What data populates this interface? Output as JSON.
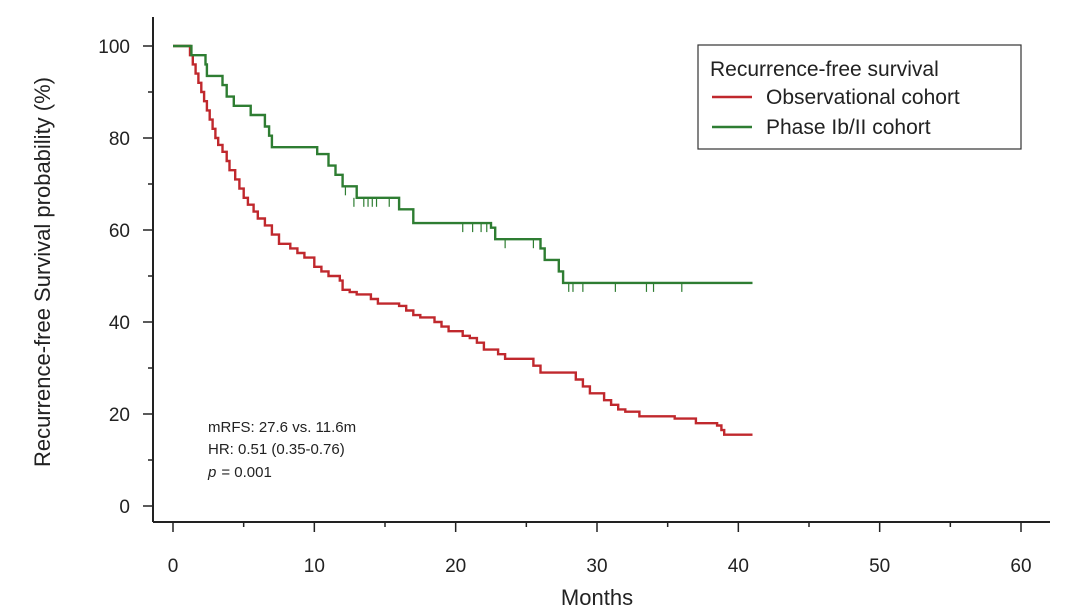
{
  "chart_data": {
    "type": "line",
    "subtype": "kaplan-meier",
    "xlabel": "Months",
    "ylabel": "Recurrence-free Survival probability (%)",
    "xlim": [
      0,
      60
    ],
    "ylim": [
      0,
      100
    ],
    "xticks": [
      0,
      10,
      20,
      30,
      40,
      50,
      60
    ],
    "yticks": [
      0,
      20,
      40,
      60,
      80,
      100
    ],
    "grid": false,
    "legend": {
      "title": "Recurrence-free survival",
      "position": "top-right"
    },
    "series": [
      {
        "name": "Observational cohort",
        "color": "#c0282d",
        "steps": [
          [
            0,
            100
          ],
          [
            1,
            100
          ],
          [
            1.2,
            98
          ],
          [
            1.4,
            96
          ],
          [
            1.6,
            94
          ],
          [
            1.8,
            92
          ],
          [
            2.0,
            90
          ],
          [
            2.2,
            88
          ],
          [
            2.4,
            86
          ],
          [
            2.6,
            84
          ],
          [
            2.8,
            82
          ],
          [
            3.0,
            80
          ],
          [
            3.2,
            78.5
          ],
          [
            3.5,
            77
          ],
          [
            3.8,
            75
          ],
          [
            4.0,
            73
          ],
          [
            4.4,
            71
          ],
          [
            4.7,
            69
          ],
          [
            5.0,
            67
          ],
          [
            5.3,
            65.5
          ],
          [
            5.7,
            64
          ],
          [
            6.0,
            62.5
          ],
          [
            6.5,
            61
          ],
          [
            7.0,
            59
          ],
          [
            7.5,
            57
          ],
          [
            8.3,
            56
          ],
          [
            8.8,
            55
          ],
          [
            9.3,
            54
          ],
          [
            10.0,
            52
          ],
          [
            10.5,
            51
          ],
          [
            11.0,
            50
          ],
          [
            11.8,
            49
          ],
          [
            12.0,
            47
          ],
          [
            12.5,
            46.5
          ],
          [
            13.0,
            46
          ],
          [
            14.0,
            45
          ],
          [
            14.5,
            44
          ],
          [
            16.0,
            43.5
          ],
          [
            16.5,
            42.5
          ],
          [
            17.0,
            41.5
          ],
          [
            17.5,
            41
          ],
          [
            18.5,
            40
          ],
          [
            19.0,
            39
          ],
          [
            19.5,
            38
          ],
          [
            20.5,
            37
          ],
          [
            21.0,
            36.5
          ],
          [
            21.5,
            35.5
          ],
          [
            22.0,
            34
          ],
          [
            23.0,
            33
          ],
          [
            23.5,
            32
          ],
          [
            25.5,
            30.5
          ],
          [
            26.0,
            29
          ],
          [
            28.5,
            27.5
          ],
          [
            29.0,
            26
          ],
          [
            29.5,
            24.5
          ],
          [
            30.5,
            23
          ],
          [
            31.0,
            22
          ],
          [
            31.5,
            21
          ],
          [
            32.0,
            20.5
          ],
          [
            33.0,
            19.5
          ],
          [
            35.5,
            19
          ],
          [
            37.0,
            18
          ],
          [
            38.5,
            17.5
          ],
          [
            38.8,
            16.5
          ],
          [
            39.0,
            15.5
          ],
          [
            41.0,
            15.5
          ]
        ],
        "censor": []
      },
      {
        "name": "Phase Ib/II cohort",
        "color": "#2e7d32",
        "steps": [
          [
            0,
            100
          ],
          [
            1.2,
            100
          ],
          [
            1.3,
            98
          ],
          [
            2.3,
            96
          ],
          [
            2.4,
            93.5
          ],
          [
            3.5,
            91.5
          ],
          [
            3.8,
            89
          ],
          [
            4.3,
            87
          ],
          [
            5.5,
            85
          ],
          [
            6.5,
            82.5
          ],
          [
            6.8,
            80.5
          ],
          [
            7.0,
            78
          ],
          [
            10.2,
            76.5
          ],
          [
            11.0,
            74
          ],
          [
            11.5,
            72
          ],
          [
            12.0,
            69.5
          ],
          [
            13.0,
            67
          ],
          [
            16.0,
            64.5
          ],
          [
            17.0,
            61.5
          ],
          [
            22.5,
            60.5
          ],
          [
            22.8,
            58
          ],
          [
            26.0,
            56
          ],
          [
            26.3,
            53.5
          ],
          [
            27.3,
            51
          ],
          [
            27.6,
            48.5
          ],
          [
            41.0,
            48.5
          ]
        ],
        "censor": [
          [
            12.2,
            69.5
          ],
          [
            12.8,
            67
          ],
          [
            13.5,
            67
          ],
          [
            13.8,
            67
          ],
          [
            14.1,
            67
          ],
          [
            14.4,
            67
          ],
          [
            15.3,
            67
          ],
          [
            20.5,
            61.5
          ],
          [
            21.2,
            61.5
          ],
          [
            21.8,
            61.5
          ],
          [
            22.2,
            61.5
          ],
          [
            23.5,
            58
          ],
          [
            25.5,
            58
          ],
          [
            28.0,
            48.5
          ],
          [
            28.3,
            48.5
          ],
          [
            29.0,
            48.5
          ],
          [
            31.3,
            48.5
          ],
          [
            33.5,
            48.5
          ],
          [
            34.0,
            48.5
          ],
          [
            36.0,
            48.5
          ]
        ]
      }
    ],
    "annotations": [
      "mRFS: 27.6 vs. 11.6m",
      "HR: 0.51 (0.35-0.76)",
      "= 0.001"
    ],
    "annotation_p": "p"
  }
}
